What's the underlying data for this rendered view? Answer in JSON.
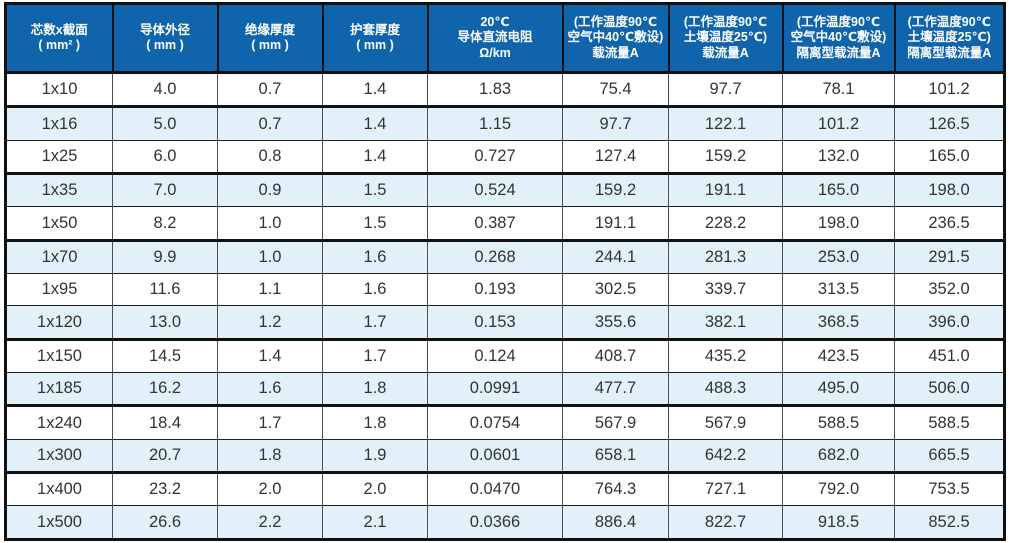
{
  "table": {
    "title_implicit": "单芯电缆规格参数表",
    "header": [
      {
        "id": "col-core-section",
        "lines": [
          "芯数x截面",
          "( mm² )"
        ]
      },
      {
        "id": "col-conductor-od",
        "lines": [
          "导体外径",
          "( mm )"
        ]
      },
      {
        "id": "col-insulation-thickness",
        "lines": [
          "绝缘厚度",
          "( mm )"
        ]
      },
      {
        "id": "col-sheath-thickness",
        "lines": [
          "护套厚度",
          "( mm )"
        ]
      },
      {
        "id": "col-dc-resistance",
        "lines": [
          "20℃",
          "导体直流电阻",
          "Ω/km"
        ]
      },
      {
        "id": "col-ampacity-air",
        "lines": [
          "(工作温度90℃",
          "空气中40℃敷设)",
          "载流量A"
        ]
      },
      {
        "id": "col-ampacity-soil",
        "lines": [
          "(工作温度90℃",
          "土壤温度25℃)",
          "载流量A"
        ]
      },
      {
        "id": "col-ampacity-air-isolated",
        "lines": [
          "(工作温度90℃",
          "空气中40℃敷设)",
          "隔离型载流量A"
        ]
      },
      {
        "id": "col-ampacity-soil-isolated",
        "lines": [
          "(工作温度90℃",
          "土壤温度25℃)",
          "隔离型载流量A"
        ]
      }
    ],
    "rows": [
      [
        "1x10",
        "4.0",
        "0.7",
        "1.4",
        "1.83",
        "75.4",
        "97.7",
        "78.1",
        "101.2"
      ],
      [
        "1x16",
        "5.0",
        "0.7",
        "1.4",
        "1.15",
        "97.7",
        "122.1",
        "101.2",
        "126.5"
      ],
      [
        "1x25",
        "6.0",
        "0.8",
        "1.4",
        "0.727",
        "127.4",
        "159.2",
        "132.0",
        "165.0"
      ],
      [
        "1x35",
        "7.0",
        "0.9",
        "1.5",
        "0.524",
        "159.2",
        "191.1",
        "165.0",
        "198.0"
      ],
      [
        "1x50",
        "8.2",
        "1.0",
        "1.5",
        "0.387",
        "191.1",
        "228.2",
        "198.0",
        "236.5"
      ],
      [
        "1x70",
        "9.9",
        "1.0",
        "1.6",
        "0.268",
        "244.1",
        "281.3",
        "253.0",
        "291.5"
      ],
      [
        "1x95",
        "11.6",
        "1.1",
        "1.6",
        "0.193",
        "302.5",
        "339.7",
        "313.5",
        "352.0"
      ],
      [
        "1x120",
        "13.0",
        "1.2",
        "1.7",
        "0.153",
        "355.6",
        "382.1",
        "368.5",
        "396.0"
      ],
      [
        "1x150",
        "14.5",
        "1.4",
        "1.7",
        "0.124",
        "408.7",
        "435.2",
        "423.5",
        "451.0"
      ],
      [
        "1x185",
        "16.2",
        "1.6",
        "1.8",
        "0.0991",
        "477.7",
        "488.3",
        "495.0",
        "506.0"
      ],
      [
        "1x240",
        "18.4",
        "1.7",
        "1.8",
        "0.0754",
        "567.9",
        "567.9",
        "588.5",
        "588.5"
      ],
      [
        "1x300",
        "20.7",
        "1.8",
        "1.9",
        "0.0601",
        "658.1",
        "642.2",
        "682.0",
        "665.5"
      ],
      [
        "1x400",
        "23.2",
        "2.0",
        "2.0",
        "0.0470",
        "764.3",
        "727.1",
        "792.0",
        "753.5"
      ],
      [
        "1x500",
        "26.6",
        "2.2",
        "2.1",
        "0.0366",
        "886.4",
        "822.7",
        "918.5",
        "852.5"
      ]
    ]
  },
  "colors": {
    "header_bg": "#1064AB",
    "header_text": "#FFFFFF",
    "stripe_bg": "#E2F0FA",
    "row_bg": "#FFFFFF",
    "border_heavy": "#111111",
    "border_light": "#4D4D4D",
    "body_text": "#333333"
  }
}
